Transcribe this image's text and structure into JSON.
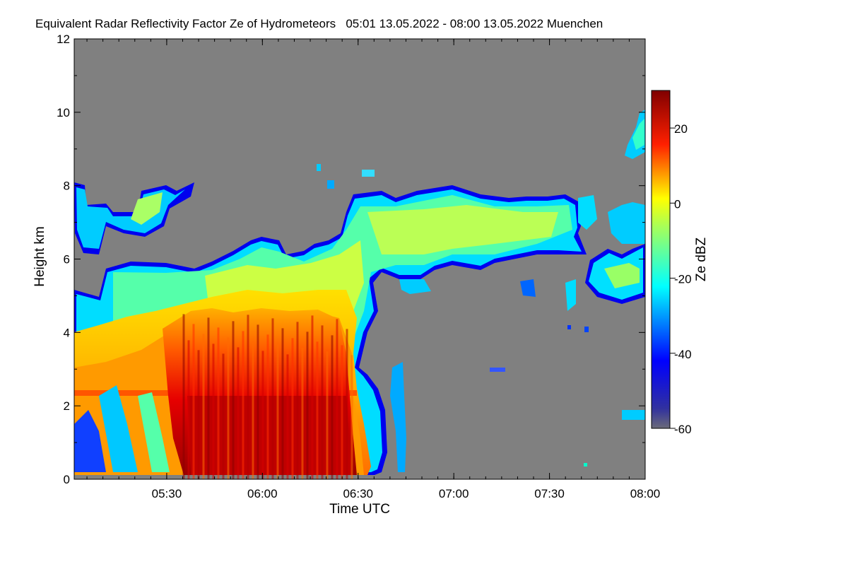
{
  "chart_data": {
    "type": "heatmap",
    "title": "Equivalent Radar Reflectivity Factor Ze of Hydrometeors   05:01 13.05.2022 - 08:00 13.05.2022 Muenchen",
    "xlabel": "Time UTC",
    "ylabel": "Height km",
    "colorbar_label": "Ze dBZ",
    "xlim": [
      "05:01",
      "08:00"
    ],
    "ylim": [
      0,
      12
    ],
    "x_ticks": [
      "05:30",
      "06:00",
      "06:30",
      "07:00",
      "07:30",
      "08:00"
    ],
    "y_ticks": [
      0,
      2,
      4,
      6,
      8,
      10,
      12
    ],
    "colorbar_range": [
      -60,
      30
    ],
    "colorbar_ticks": [
      20,
      0,
      -20,
      -40,
      -60
    ],
    "colors": {
      "background_nodata": "#808080",
      "colormap": [
        "#505070",
        "#0000ff",
        "#00ffff",
        "#ffff00",
        "#ff0000",
        "#800000"
      ]
    },
    "features": [
      {
        "name": "precipitation-core",
        "time_start": "05:35",
        "time_end": "06:28",
        "height_top_km": 4.5,
        "max_dbz": 28
      },
      {
        "name": "bright-band",
        "time_start": "05:01",
        "time_end": "06:28",
        "height_km": 2.3
      },
      {
        "name": "stratiform-anvil",
        "time_start": "05:01",
        "time_end": "06:35",
        "height_top_km": 6.5,
        "dbz": -10
      },
      {
        "name": "upper-cloud-layer",
        "time_start": "06:30",
        "time_end": "07:52",
        "height_base_km": 5.8,
        "height_top_km": 8.0,
        "dbz": -15
      },
      {
        "name": "late-cirrus",
        "time_start": "07:50",
        "time_end": "08:00",
        "height_base_km": 9.0,
        "height_top_km": 10.2,
        "dbz": -25
      }
    ]
  }
}
